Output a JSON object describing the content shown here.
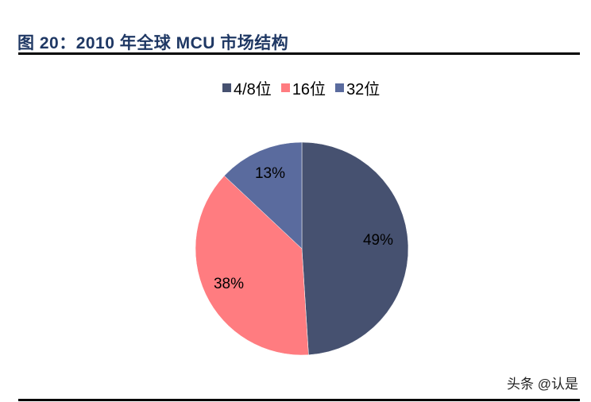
{
  "header": {
    "title": "图 20：2010 年全球 MCU 市场结构"
  },
  "legend": [
    {
      "label": "4/8位",
      "color": "#465170"
    },
    {
      "label": "16位",
      "color": "#ff7c80"
    },
    {
      "label": "32位",
      "color": "#5a6b9e"
    }
  ],
  "labels": {
    "s0": "49%",
    "s1": "38%",
    "s2": "13%"
  },
  "watermark": "头条 @认是",
  "chart_data": {
    "type": "pie",
    "title": "2010 年全球 MCU 市场结构",
    "categories": [
      "4/8位",
      "16位",
      "32位"
    ],
    "values": [
      49,
      38,
      13
    ],
    "unit": "%",
    "colors": [
      "#465170",
      "#ff7c80",
      "#5a6b9e"
    ],
    "legend_position": "top",
    "start_angle": "12 o'clock, clockwise"
  }
}
